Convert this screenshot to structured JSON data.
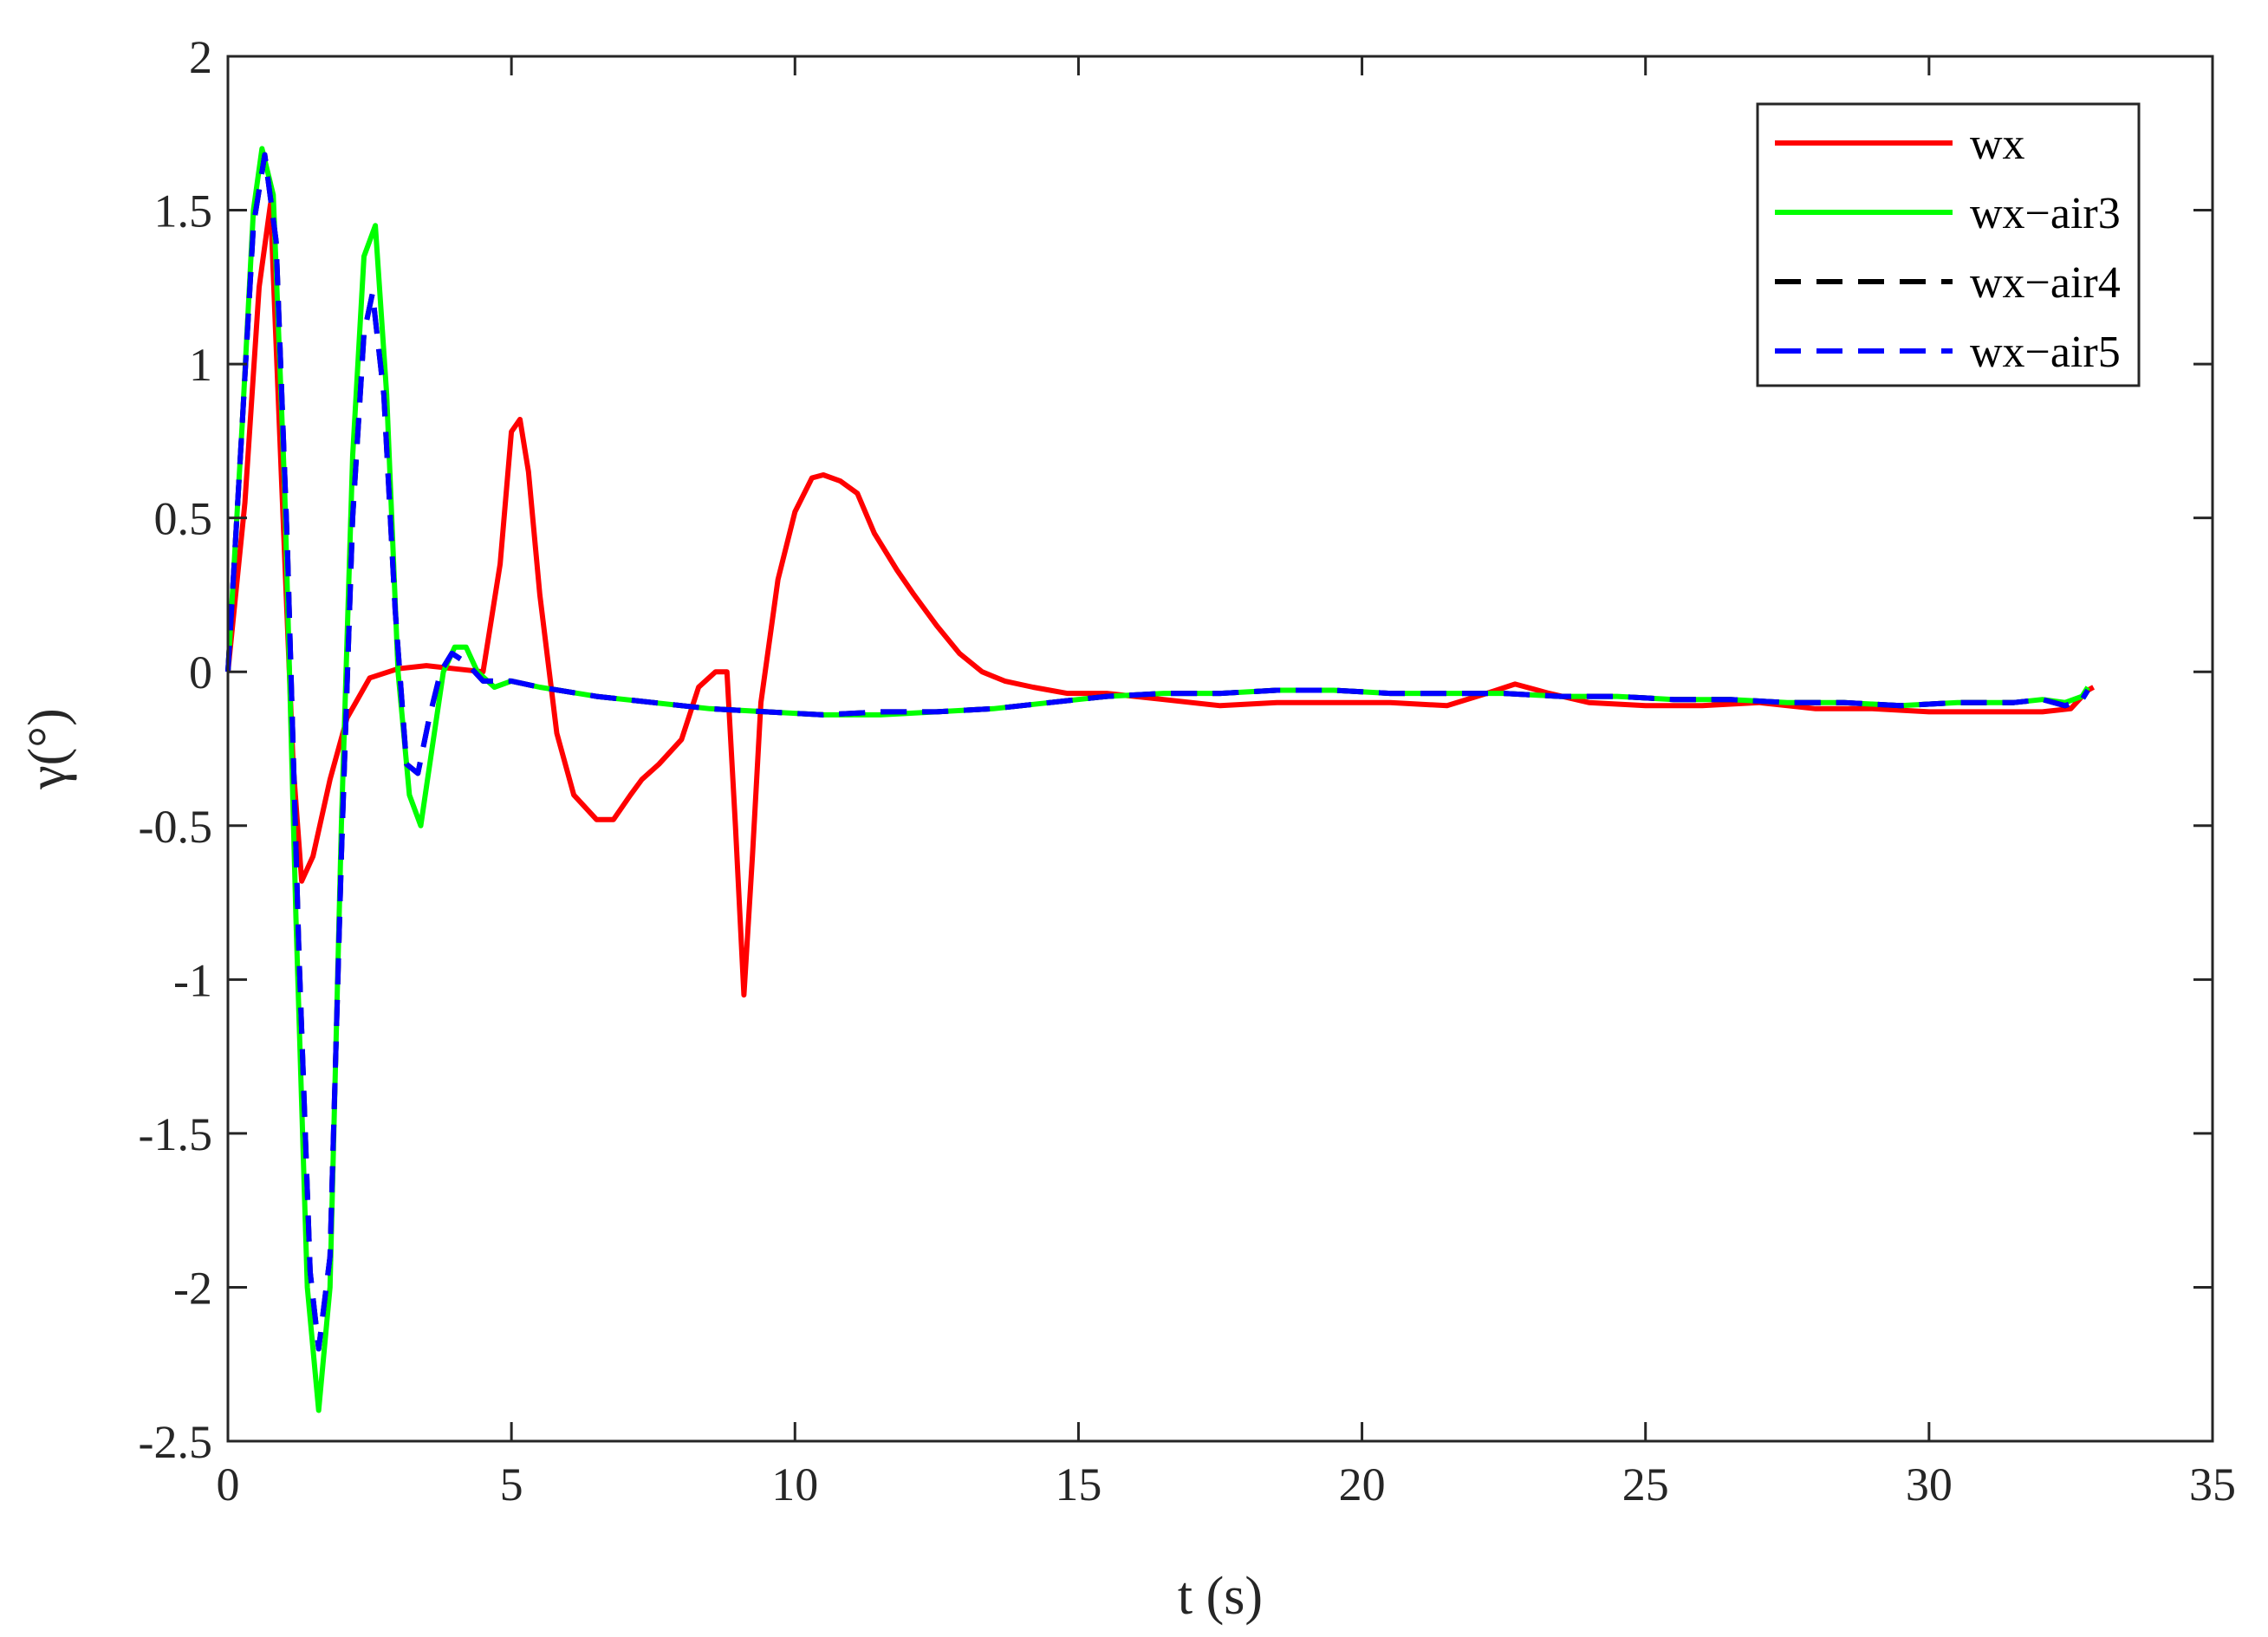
{
  "chart_data": {
    "type": "line",
    "title": "",
    "xlabel": "t (s)",
    "ylabel": "γ(°)",
    "xlim": [
      0,
      35
    ],
    "ylim": [
      -2.5,
      2
    ],
    "xticks": [
      0,
      5,
      10,
      15,
      20,
      25,
      30,
      35
    ],
    "xtick_labels": [
      "0",
      "5",
      "10",
      "15",
      "20",
      "25",
      "30",
      "35"
    ],
    "yticks": [
      2,
      1.5,
      1,
      0.5,
      0,
      -0.5,
      -1,
      -1.5,
      -2,
      -2.5
    ],
    "ytick_labels": [
      "2",
      "1.5",
      "1",
      "0.5",
      "0",
      "-0.5",
      "-1",
      "-1.5",
      "-2",
      "-2.5"
    ],
    "grid": false,
    "legend_position": "top-right",
    "series": [
      {
        "name": "wx",
        "color": "#ff0000",
        "dash": "solid",
        "x": [
          0,
          0.3,
          0.55,
          0.75,
          0.95,
          1.15,
          1.3,
          1.5,
          1.8,
          2.1,
          2.5,
          3.0,
          3.5,
          4.0,
          4.5,
          4.8,
          5.0,
          5.15,
          5.3,
          5.5,
          5.8,
          6.1,
          6.5,
          6.8,
          7.1,
          7.3,
          7.6,
          8.0,
          8.3,
          8.6,
          8.8,
          8.95,
          9.1,
          9.25,
          9.4,
          9.7,
          10.0,
          10.3,
          10.5,
          10.8,
          11.1,
          11.4,
          11.8,
          12.1,
          12.5,
          12.9,
          13.3,
          13.7,
          14.2,
          14.8,
          15.5,
          16.5,
          17.5,
          18.5,
          19.5,
          20.5,
          21.5,
          22.2,
          22.7,
          23.3,
          24.0,
          25.0,
          26.0,
          27.0,
          28.0,
          29.0,
          30.0,
          31.0,
          32.0,
          32.5,
          32.8,
          32.9
        ],
        "y": [
          0.0,
          0.55,
          1.25,
          1.52,
          0.6,
          -0.3,
          -0.68,
          -0.6,
          -0.35,
          -0.15,
          -0.02,
          0.01,
          0.02,
          0.01,
          0.0,
          0.35,
          0.78,
          0.82,
          0.65,
          0.25,
          -0.2,
          -0.4,
          -0.48,
          -0.48,
          -0.4,
          -0.35,
          -0.3,
          -0.22,
          -0.05,
          0.0,
          0.0,
          -0.5,
          -1.05,
          -0.6,
          -0.1,
          0.3,
          0.52,
          0.63,
          0.64,
          0.62,
          0.58,
          0.45,
          0.33,
          0.25,
          0.15,
          0.06,
          0.0,
          -0.03,
          -0.05,
          -0.07,
          -0.07,
          -0.09,
          -0.11,
          -0.1,
          -0.1,
          -0.1,
          -0.11,
          -0.07,
          -0.04,
          -0.07,
          -0.1,
          -0.11,
          -0.11,
          -0.1,
          -0.12,
          -0.12,
          -0.13,
          -0.13,
          -0.13,
          -0.12,
          -0.06,
          -0.05
        ]
      },
      {
        "name": "wx−air3",
        "color": "#00ff00",
        "dash": "solid",
        "x": [
          0,
          0.25,
          0.45,
          0.6,
          0.8,
          1.0,
          1.2,
          1.4,
          1.6,
          1.8,
          2.0,
          2.2,
          2.4,
          2.6,
          2.8,
          3.0,
          3.2,
          3.4,
          3.6,
          3.8,
          4.0,
          4.2,
          4.4,
          4.7,
          5.0,
          5.5,
          6.5,
          7.5,
          8.5,
          9.5,
          10.5,
          11.5,
          12.5,
          13.5,
          14.5,
          15.5,
          16.5,
          17.5,
          18.5,
          19.5,
          20.5,
          21.5,
          22.5,
          23.5,
          24.5,
          25.5,
          26.5,
          27.5,
          28.5,
          29.5,
          30.5,
          31.5,
          32.0,
          32.4,
          32.7,
          32.8
        ],
        "y": [
          0.0,
          0.8,
          1.5,
          1.7,
          1.55,
          0.6,
          -0.8,
          -2.0,
          -2.4,
          -2.0,
          -0.5,
          0.7,
          1.35,
          1.45,
          0.9,
          0.0,
          -0.4,
          -0.5,
          -0.25,
          0.0,
          0.08,
          0.08,
          0.0,
          -0.05,
          -0.03,
          -0.05,
          -0.08,
          -0.1,
          -0.12,
          -0.13,
          -0.14,
          -0.14,
          -0.13,
          -0.12,
          -0.1,
          -0.08,
          -0.07,
          -0.07,
          -0.06,
          -0.06,
          -0.07,
          -0.07,
          -0.07,
          -0.08,
          -0.08,
          -0.09,
          -0.09,
          -0.1,
          -0.1,
          -0.11,
          -0.1,
          -0.1,
          -0.09,
          -0.1,
          -0.08,
          -0.05
        ]
      },
      {
        "name": "wx−air4",
        "color": "#000000",
        "dash": "dashed",
        "x": [
          0,
          0.25,
          0.45,
          0.65,
          0.85,
          1.05,
          1.25,
          1.45,
          1.6,
          1.8,
          2.0,
          2.2,
          2.4,
          2.55,
          2.75,
          2.95,
          3.15,
          3.35,
          3.55,
          3.75,
          3.95,
          4.2,
          4.5,
          5.0,
          5.5,
          6.5,
          7.5,
          8.5,
          9.5,
          10.5,
          11.5,
          12.5,
          13.5,
          14.5,
          15.5,
          16.5,
          17.5,
          18.5,
          19.5,
          20.5,
          21.5,
          22.5,
          23.5,
          24.5,
          25.5,
          26.5,
          27.5,
          28.5,
          29.5,
          30.5,
          31.5,
          32.0,
          32.4,
          32.7,
          32.8
        ],
        "y": [
          0.0,
          0.8,
          1.45,
          1.68,
          1.4,
          0.4,
          -0.9,
          -1.95,
          -2.2,
          -1.9,
          -0.6,
          0.5,
          1.1,
          1.23,
          0.9,
          0.2,
          -0.3,
          -0.33,
          -0.15,
          0.0,
          0.06,
          0.03,
          -0.03,
          -0.03,
          -0.05,
          -0.08,
          -0.1,
          -0.12,
          -0.13,
          -0.14,
          -0.13,
          -0.13,
          -0.12,
          -0.1,
          -0.08,
          -0.07,
          -0.07,
          -0.06,
          -0.06,
          -0.07,
          -0.07,
          -0.07,
          -0.08,
          -0.08,
          -0.09,
          -0.09,
          -0.1,
          -0.1,
          -0.11,
          -0.1,
          -0.1,
          -0.09,
          -0.11,
          -0.09,
          -0.06
        ]
      },
      {
        "name": "wx−air5",
        "color": "#0000ff",
        "dash": "dashed",
        "x": [
          0,
          0.25,
          0.45,
          0.65,
          0.85,
          1.05,
          1.25,
          1.45,
          1.6,
          1.8,
          2.0,
          2.2,
          2.4,
          2.55,
          2.75,
          2.95,
          3.15,
          3.35,
          3.55,
          3.75,
          3.95,
          4.2,
          4.5,
          5.0,
          5.5,
          6.5,
          7.5,
          8.5,
          9.5,
          10.5,
          11.5,
          12.5,
          13.5,
          14.5,
          15.5,
          16.5,
          17.5,
          18.5,
          19.5,
          20.5,
          21.5,
          22.5,
          23.5,
          24.5,
          25.5,
          26.5,
          27.5,
          28.5,
          29.5,
          30.5,
          31.5,
          32.0,
          32.4,
          32.7,
          32.8
        ],
        "y": [
          0.0,
          0.8,
          1.45,
          1.68,
          1.4,
          0.4,
          -0.9,
          -1.95,
          -2.2,
          -1.9,
          -0.6,
          0.5,
          1.1,
          1.23,
          0.9,
          0.2,
          -0.3,
          -0.33,
          -0.15,
          0.0,
          0.06,
          0.03,
          -0.03,
          -0.03,
          -0.05,
          -0.08,
          -0.1,
          -0.12,
          -0.13,
          -0.14,
          -0.13,
          -0.13,
          -0.12,
          -0.1,
          -0.08,
          -0.07,
          -0.07,
          -0.06,
          -0.06,
          -0.07,
          -0.07,
          -0.07,
          -0.08,
          -0.08,
          -0.09,
          -0.09,
          -0.1,
          -0.1,
          -0.11,
          -0.1,
          -0.1,
          -0.09,
          -0.11,
          -0.09,
          -0.06
        ]
      }
    ]
  }
}
